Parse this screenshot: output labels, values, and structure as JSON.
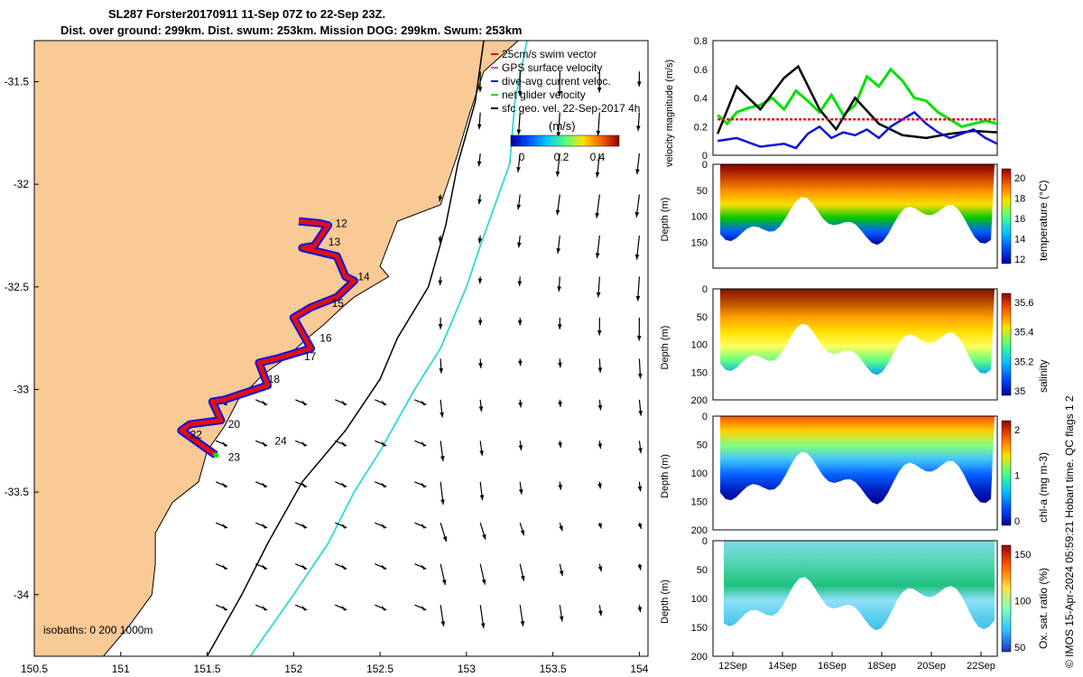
{
  "header": {
    "title_line1": "SL287 Forster20170911 11-Sep 07Z to 22-Sep 23Z.",
    "title_line2": "Dist. over ground: 299km. Dist. swum: 253km. Mission DOG: 299km. Swum: 253km"
  },
  "colors": {
    "land": "#f9c996",
    "ocean": "#ffffff",
    "swim_vector": "#e01010",
    "gps_surface": "#e040e0",
    "dive_avg": "#1010e0",
    "net_glider": "#00e000",
    "sfc_geo": "#000000",
    "isobath_200": "#000000",
    "isobath_1000": "#30d8d8"
  },
  "chart_data": [
    {
      "type": "scatter",
      "name": "map",
      "xlim": [
        150.5,
        154.05
      ],
      "ylim": [
        -34.3,
        -31.3
      ],
      "xticks": [
        "150.5",
        "151",
        "151.5",
        "152",
        "152.5",
        "153",
        "153.5",
        "154"
      ],
      "xtick_values": [
        150.5,
        151,
        151.5,
        152,
        152.5,
        153,
        153.5,
        154
      ],
      "yticks": [
        "-31.5",
        "-32",
        "-32.5",
        "-33",
        "-33.5",
        "-34"
      ],
      "ytick_values": [
        -31.5,
        -32,
        -32.5,
        -33,
        -33.5,
        -34
      ],
      "legend": [
        "25cm/s swim vector",
        "GPS surface velocity",
        "dive-avg current veloc.",
        "net glider velocity",
        "sfc geo. vel. 22-Sep-2017 4h"
      ],
      "colorbar_label": "(m/s)",
      "colorbar_ticks": [
        "0",
        "0.2",
        "0.4"
      ],
      "isobaths_label": "isobaths: 0   200  1000m",
      "track": [
        {
          "lon": 152.03,
          "lat": -32.18
        },
        {
          "lon": 152.15,
          "lat": -32.19
        },
        {
          "lon": 152.2,
          "lat": -32.2
        },
        {
          "lon": 152.12,
          "lat": -32.3
        },
        {
          "lon": 152.05,
          "lat": -32.31
        },
        {
          "lon": 152.25,
          "lat": -32.35
        },
        {
          "lon": 152.3,
          "lat": -32.45
        },
        {
          "lon": 152.35,
          "lat": -32.47
        },
        {
          "lon": 152.25,
          "lat": -32.55
        },
        {
          "lon": 152.1,
          "lat": -32.6
        },
        {
          "lon": 152.0,
          "lat": -32.65
        },
        {
          "lon": 152.1,
          "lat": -32.8
        },
        {
          "lon": 151.9,
          "lat": -32.85
        },
        {
          "lon": 151.8,
          "lat": -32.87
        },
        {
          "lon": 151.85,
          "lat": -32.98
        },
        {
          "lon": 151.6,
          "lat": -33.05
        },
        {
          "lon": 151.53,
          "lat": -33.06
        },
        {
          "lon": 151.58,
          "lat": -33.15
        },
        {
          "lon": 151.4,
          "lat": -33.17
        },
        {
          "lon": 151.35,
          "lat": -33.2
        },
        {
          "lon": 151.45,
          "lat": -33.26
        },
        {
          "lon": 151.55,
          "lat": -33.32
        }
      ],
      "day_labels": [
        {
          "label": "12",
          "lon": 152.22,
          "lat": -32.19
        },
        {
          "label": "13",
          "lon": 152.18,
          "lat": -32.28
        },
        {
          "lon": 152.35,
          "lat": -32.45,
          "label": "14"
        },
        {
          "label": "15",
          "lon": 152.2,
          "lat": -32.58
        },
        {
          "label": "16",
          "lon": 152.13,
          "lat": -32.75
        },
        {
          "label": "17",
          "lon": 152.04,
          "lat": -32.84
        },
        {
          "label": "18",
          "lon": 151.83,
          "lat": -32.95
        },
        {
          "label": "20",
          "lon": 151.6,
          "lat": -33.17
        },
        {
          "label": "22",
          "lon": 151.38,
          "lat": -33.22
        },
        {
          "label": "23",
          "lon": 151.6,
          "lat": -33.33
        },
        {
          "label": "24",
          "lon": 151.87,
          "lat": -33.25
        }
      ]
    },
    {
      "type": "line",
      "name": "velocity",
      "ylabel": "velocity magnitude (m/s)",
      "xlim": [
        11.0,
        23.0
      ],
      "ylim": [
        0,
        0.8
      ],
      "yticks": [
        "0",
        "0.2",
        "0.4",
        "0.6",
        "0.8"
      ],
      "ytick_values": [
        0,
        0.2,
        0.4,
        0.6,
        0.8
      ],
      "series": [
        {
          "color": "#00e000",
          "x": [
            11.2,
            11.6,
            12.0,
            12.5,
            13.0,
            13.5,
            14.0,
            14.5,
            15.0,
            15.5,
            16.0,
            16.5,
            17.0,
            17.5,
            18.0,
            18.5,
            19.0,
            19.5,
            20.0,
            20.5,
            21.0,
            21.5,
            22.0,
            22.5,
            23.0
          ],
          "y": [
            0.28,
            0.22,
            0.3,
            0.33,
            0.35,
            0.4,
            0.32,
            0.45,
            0.38,
            0.3,
            0.42,
            0.28,
            0.35,
            0.55,
            0.48,
            0.6,
            0.52,
            0.4,
            0.38,
            0.3,
            0.25,
            0.2,
            0.22,
            0.24,
            0.22
          ]
        },
        {
          "color": "#000000",
          "x": [
            11.2,
            12.0,
            13.0,
            14.0,
            14.6,
            15.5,
            16.2,
            17.0,
            18.0,
            19.0,
            20.0,
            21.0,
            22.0,
            23.0
          ],
          "y": [
            0.15,
            0.48,
            0.32,
            0.54,
            0.62,
            0.32,
            0.18,
            0.4,
            0.22,
            0.14,
            0.12,
            0.15,
            0.17,
            0.16
          ]
        },
        {
          "color": "#1010e0",
          "x": [
            11.2,
            12.0,
            13.0,
            14.0,
            14.5,
            15.0,
            15.5,
            16.0,
            16.5,
            17.0,
            17.5,
            18.0,
            18.5,
            19.0,
            19.5,
            20.0,
            20.5,
            21.0,
            21.5,
            22.0,
            22.5,
            23.0
          ],
          "y": [
            0.1,
            0.12,
            0.06,
            0.08,
            0.05,
            0.15,
            0.2,
            0.12,
            0.16,
            0.14,
            0.18,
            0.12,
            0.2,
            0.25,
            0.3,
            0.22,
            0.16,
            0.12,
            0.15,
            0.18,
            0.12,
            0.08
          ]
        },
        {
          "color": "#e01010",
          "x": [
            11.2,
            23.0
          ],
          "y": [
            0.25,
            0.25
          ]
        }
      ]
    },
    {
      "type": "heatmap",
      "name": "temperature",
      "ylabel": "Depth (m)",
      "colorbar_label": "temperature (°C)",
      "yticks": [
        "0",
        "50",
        "100",
        "150"
      ],
      "ylim": [
        0,
        200
      ],
      "colorbar_ticks": [
        "12",
        "14",
        "16",
        "18",
        "20"
      ]
    },
    {
      "type": "heatmap",
      "name": "salinity",
      "ylabel": "Depth (m)",
      "colorbar_label": "salinity",
      "yticks": [
        "0",
        "50",
        "100",
        "150",
        "200"
      ],
      "ylim": [
        0,
        200
      ],
      "colorbar_ticks": [
        "35",
        "35.2",
        "35.4",
        "35.6"
      ]
    },
    {
      "type": "heatmap",
      "name": "chla",
      "ylabel": "Depth (m)",
      "colorbar_label": "chl-a (mg m-3)",
      "yticks": [
        "0",
        "50",
        "100",
        "150",
        "200"
      ],
      "ylim": [
        0,
        200
      ],
      "colorbar_ticks": [
        "0",
        "1",
        "2"
      ]
    },
    {
      "type": "heatmap",
      "name": "oxygen",
      "ylabel": "Depth (m)",
      "colorbar_label": "Ox. sat. ratio (%)",
      "yticks": [
        "0",
        "50",
        "100",
        "150",
        "200"
      ],
      "ylim": [
        0,
        200
      ],
      "colorbar_ticks": [
        "50",
        "100",
        "150"
      ],
      "xticks": [
        "12Sep",
        "14Sep",
        "16Sep",
        "18Sep",
        "20Sep",
        "22Sep"
      ]
    }
  ],
  "footer": {
    "credit": "© IMOS 15-Apr-2024 05:59:21 Hobart time. QC flags 1  2"
  }
}
